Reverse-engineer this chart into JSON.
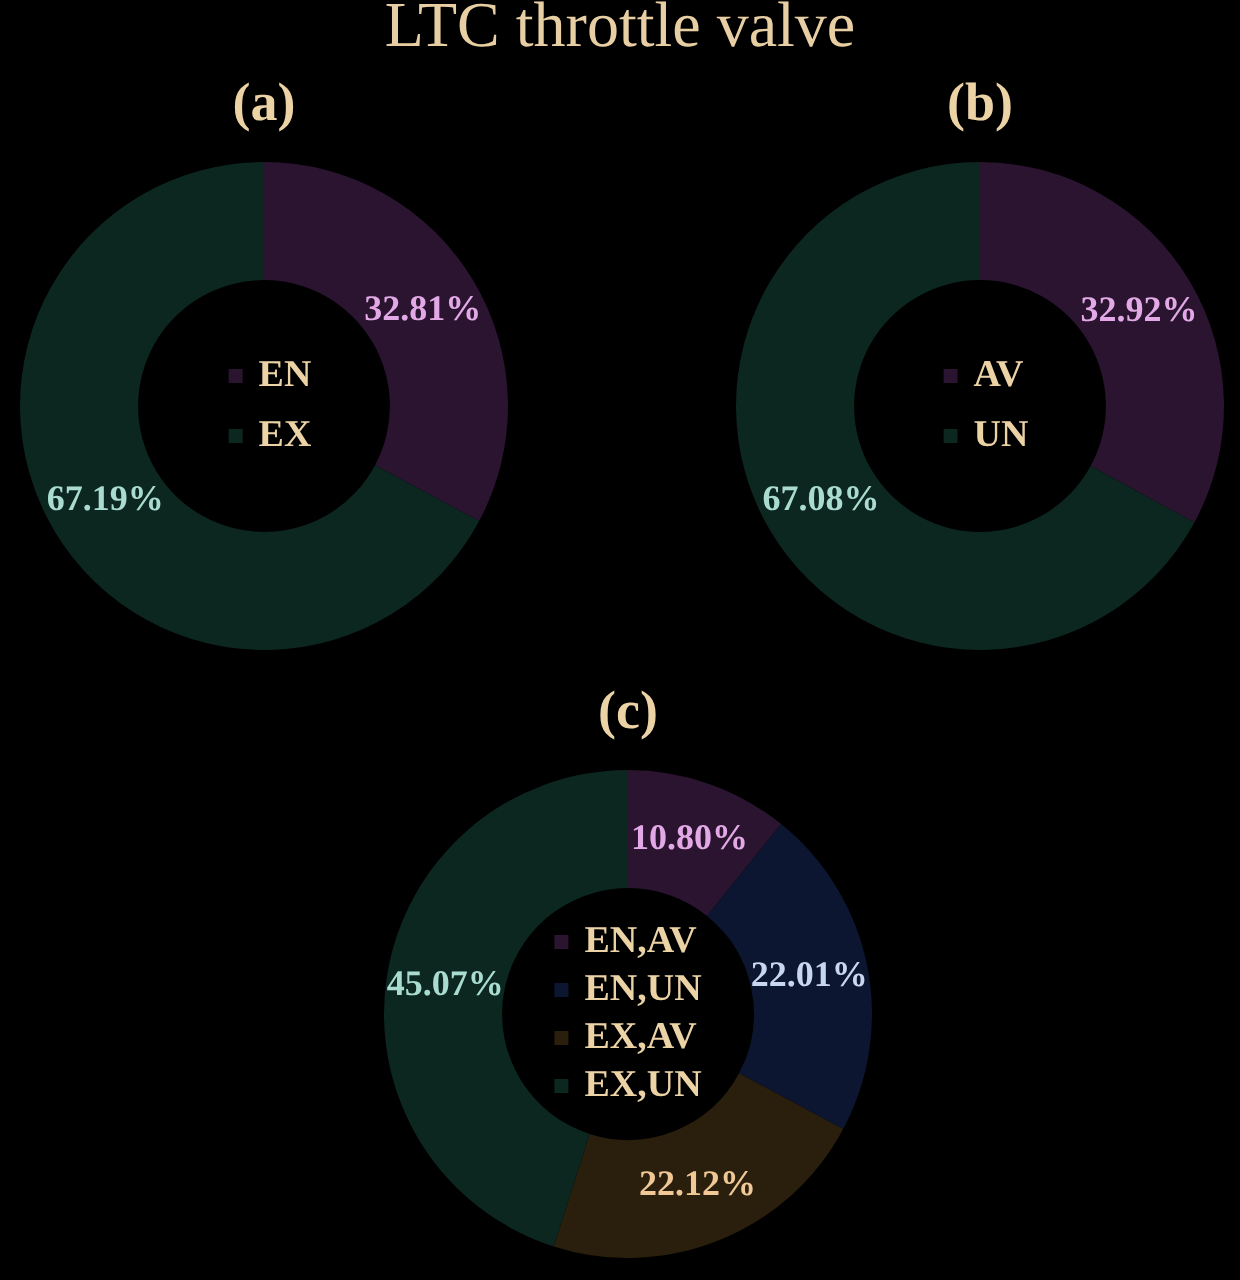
{
  "chart_data": [
    {
      "type": "donut",
      "title": "LTC throttle valve",
      "subtitle": "(a)",
      "categories": [
        "EN",
        "EX"
      ],
      "values": [
        32.81,
        67.19
      ],
      "colors": [
        "#2a1430",
        "#0c2620"
      ],
      "value_labels": [
        "32.81%",
        "67.19%"
      ],
      "legend": "center"
    },
    {
      "type": "donut",
      "subtitle": "(b)",
      "categories": [
        "AV",
        "UN"
      ],
      "values": [
        32.92,
        67.08
      ],
      "colors": [
        "#2a1430",
        "#0c2620"
      ],
      "value_labels": [
        "32.92%",
        "67.08%"
      ],
      "legend": "center"
    },
    {
      "type": "donut",
      "subtitle": "(c)",
      "categories": [
        "EN,AV",
        "EN,UN",
        "EX,AV",
        "EX,UN"
      ],
      "values": [
        10.8,
        22.01,
        22.12,
        45.07
      ],
      "colors": [
        "#2a1430",
        "#0c1630",
        "#2a1e0c",
        "#0c2620"
      ],
      "value_labels": [
        "10.80%",
        "22.01%",
        "22.12%",
        "45.07%"
      ],
      "legend": "center"
    }
  ]
}
